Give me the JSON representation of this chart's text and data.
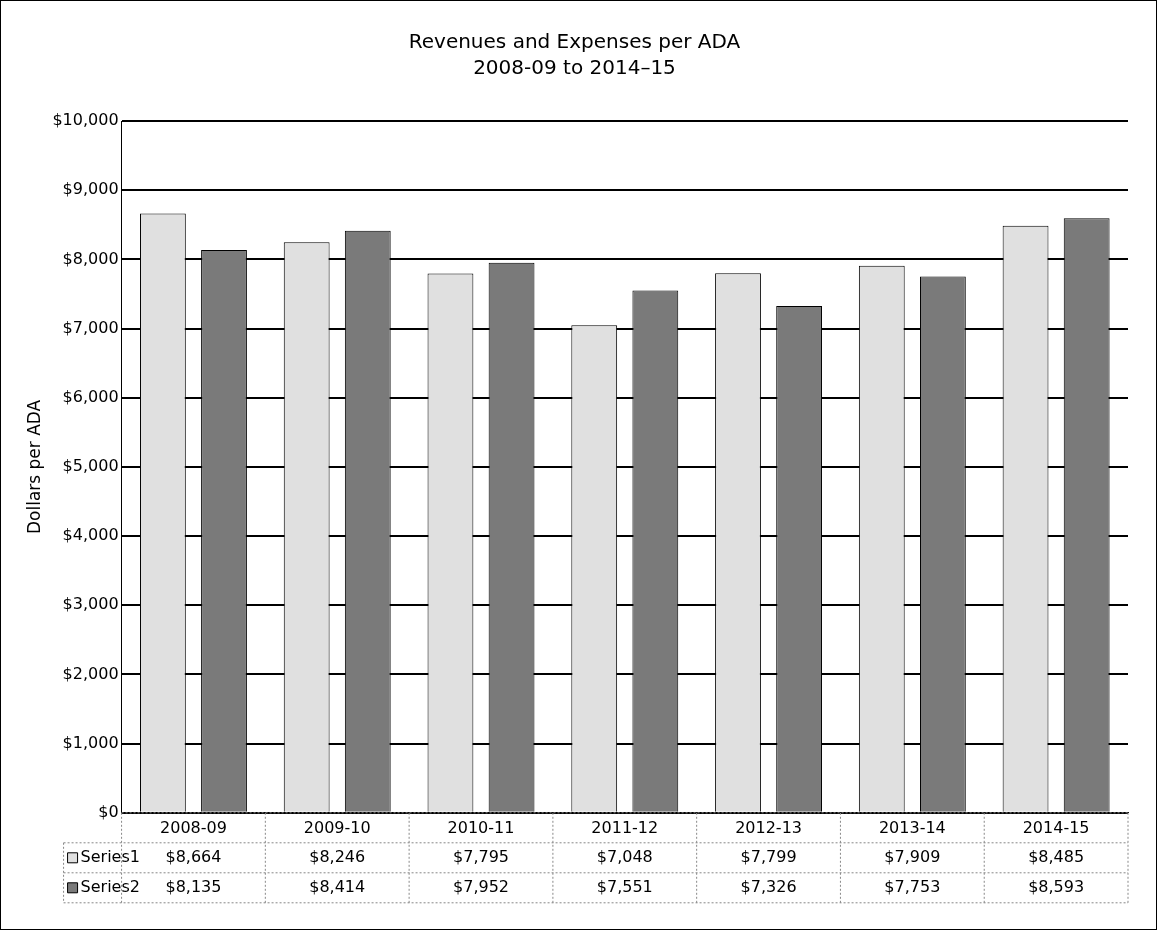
{
  "chart_data": {
    "type": "bar",
    "title": "Revenues and Expenses per ADA",
    "subtitle": "2008-09 to 2014–15",
    "ylabel": "Dollars per ADA",
    "categories": [
      "2008-09",
      "2009-10",
      "2010-11",
      "2011-12",
      "2012-13",
      "2013-14",
      "2014-15"
    ],
    "series": [
      {
        "name": "Series1",
        "color": "#e0e0e0",
        "values": [
          8664,
          8246,
          7795,
          7048,
          7799,
          7909,
          8485
        ],
        "value_labels": [
          "$8,664",
          "$8,246",
          "$7,795",
          "$7,048",
          "$7,799",
          "$7,909",
          "$8,485"
        ]
      },
      {
        "name": "Series2",
        "color": "#7a7a7a",
        "values": [
          8135,
          8414,
          7952,
          7551,
          7326,
          7753,
          8593
        ],
        "value_labels": [
          "$8,135",
          "$8,414",
          "$7,952",
          "$7,551",
          "$7,326",
          "$7,753",
          "$8,593"
        ]
      }
    ],
    "ylim": [
      0,
      10000
    ],
    "yticks": [
      {
        "value": 0,
        "label": "$0"
      },
      {
        "value": 1000,
        "label": "$1,000"
      },
      {
        "value": 2000,
        "label": "$2,000"
      },
      {
        "value": 3000,
        "label": "$3,000"
      },
      {
        "value": 4000,
        "label": "$4,000"
      },
      {
        "value": 5000,
        "label": "$5,000"
      },
      {
        "value": 6000,
        "label": "$6,000"
      },
      {
        "value": 7000,
        "label": "$7,000"
      },
      {
        "value": 8000,
        "label": "$8,000"
      },
      {
        "value": 9000,
        "label": "$9,000"
      },
      {
        "value": 10000,
        "label": "$10,000"
      }
    ],
    "grid": "y",
    "legend": "bottom"
  }
}
